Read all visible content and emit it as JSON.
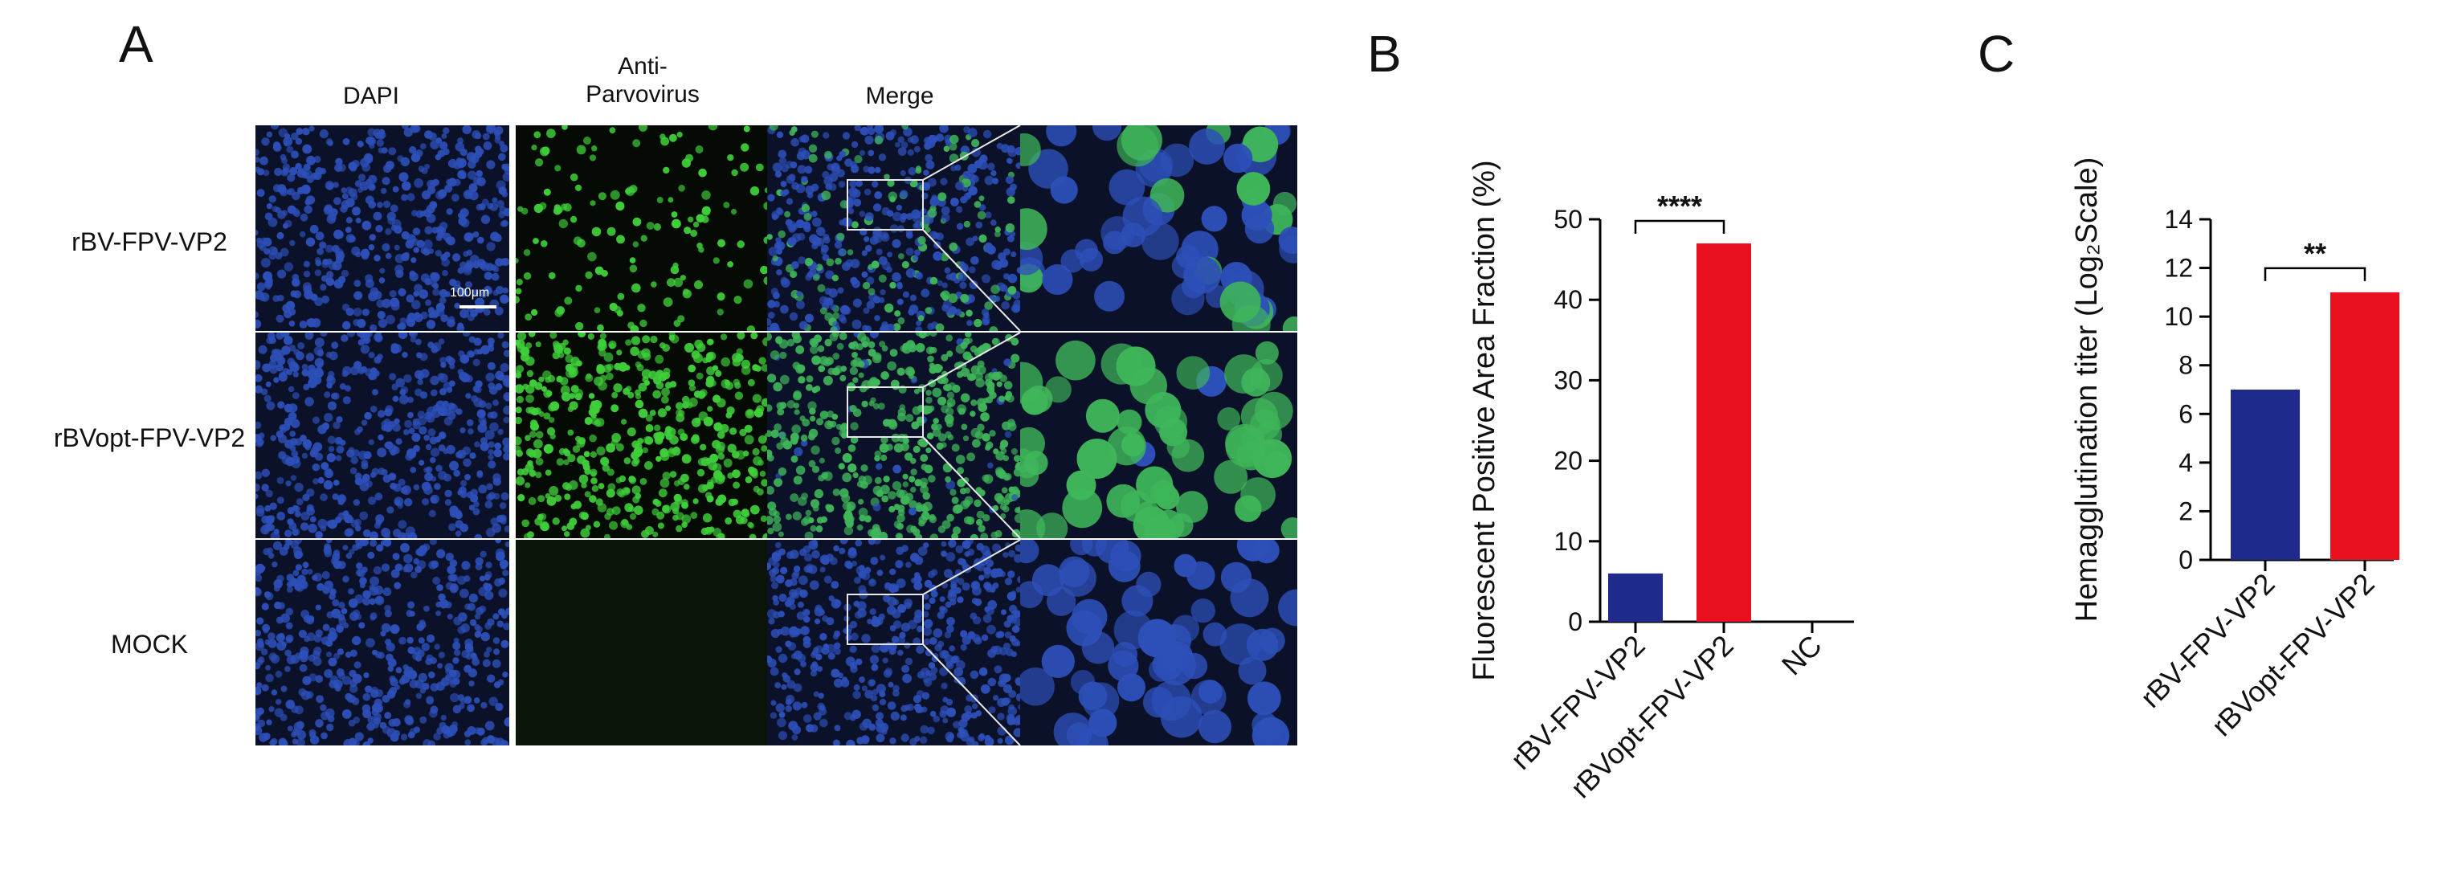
{
  "panels": {
    "a": "A",
    "b": "B",
    "c": "C"
  },
  "figure_a": {
    "columns": [
      "DAPI",
      "Anti-\nParvovirus",
      "Merge"
    ],
    "rows": [
      "rBV-FPV-VP2",
      "rBVopt-FPV-VP2",
      "MOCK"
    ],
    "scale_bar": "100μm",
    "colors": {
      "background": "#0a1128",
      "dapi": "#2d4fb8",
      "anti_parvovirus": "#3fcf3a",
      "mock_green": "#0b1408"
    },
    "signal": {
      "rBV-FPV-VP2": 0.25,
      "rBVopt-FPV-VP2": 0.95,
      "MOCK": 0.0
    }
  },
  "chart_data": [
    {
      "type": "bar",
      "categories": [
        "rBV-FPV-VP2",
        "rBVopt-FPV-VP2",
        "NC"
      ],
      "values": [
        6,
        47,
        0
      ],
      "colors": [
        "#1e2a8c",
        "#e8101e",
        "#000000"
      ],
      "title": "",
      "xlabel": "",
      "ylabel": "Fluorescent Positive Area Fraction (%)",
      "ylim": [
        0,
        50
      ],
      "yticks": [
        "0",
        "10",
        "20",
        "30",
        "40",
        "50"
      ],
      "significance": {
        "between": [
          0,
          1
        ],
        "label": "****"
      },
      "grid": false
    },
    {
      "type": "bar",
      "categories": [
        "rBV-FPV-VP2",
        "rBVopt-FPV-VP2"
      ],
      "values": [
        7,
        11
      ],
      "colors": [
        "#1e2a8c",
        "#e8101e"
      ],
      "title": "",
      "xlabel": "",
      "ylabel": "Hemagglutination titer (Log₂Scale)",
      "ylim": [
        0,
        14
      ],
      "yticks": [
        "0",
        "2",
        "4",
        "6",
        "8",
        "10",
        "12",
        "14"
      ],
      "significance": {
        "between": [
          0,
          1
        ],
        "label": "**"
      },
      "grid": false
    }
  ]
}
